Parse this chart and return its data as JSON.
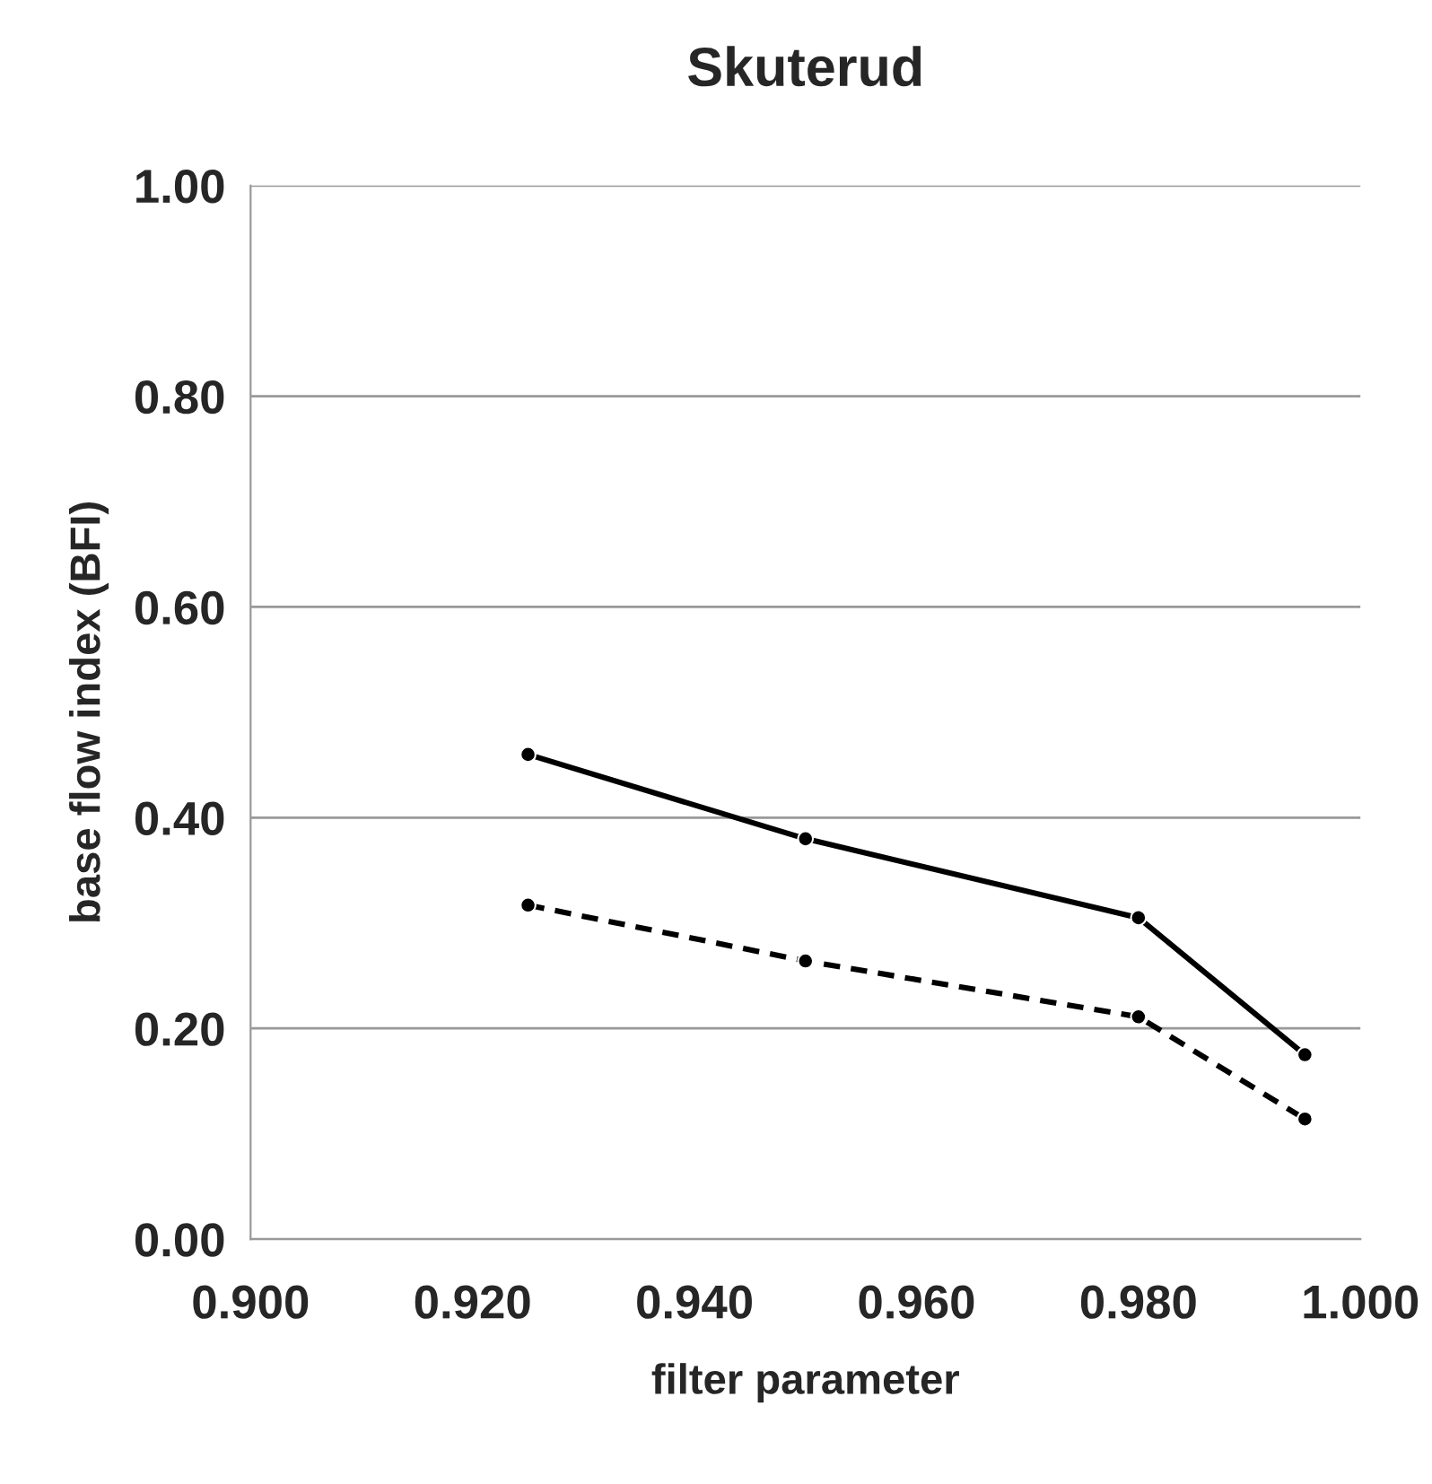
{
  "chart_data": {
    "type": "line",
    "title": "Skuterud",
    "xlabel": "filter parameter",
    "ylabel": "base flow index (BFI)",
    "x": [
      0.925,
      0.95,
      0.98,
      0.995
    ],
    "series": [
      {
        "color": "#000000",
        "values": [
          0.46,
          0.38,
          0.305,
          0.175
        ],
        "line_style": "solid"
      },
      {
        "color": "#000000",
        "values": [
          0.317,
          0.264,
          0.211,
          0.114
        ],
        "line_style": "dashed"
      }
    ],
    "xlim": [
      0.9,
      1.0
    ],
    "xticks": [
      {
        "value": 0.9,
        "label": "0.900"
      },
      {
        "value": 0.92,
        "label": "0.920"
      },
      {
        "value": 0.94,
        "label": "0.940"
      },
      {
        "value": 0.96,
        "label": "0.960"
      },
      {
        "value": 0.98,
        "label": "0.980"
      },
      {
        "value": 1.0,
        "label": "1.000"
      }
    ],
    "ylim": [
      0,
      1.0
    ],
    "yticks": [
      {
        "value": 0,
        "label": "0.00"
      },
      {
        "value": 0.2,
        "label": "0.20"
      },
      {
        "value": 0.4,
        "label": "0.40"
      },
      {
        "value": 0.6,
        "label": "0.60"
      },
      {
        "value": 0.8,
        "label": "0.80"
      },
      {
        "value": 1.0,
        "label": "1.00"
      }
    ],
    "grid": "y",
    "marker": "circle"
  }
}
